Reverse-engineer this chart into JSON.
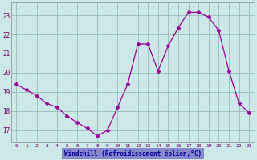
{
  "x": [
    0,
    1,
    2,
    3,
    4,
    5,
    6,
    7,
    8,
    9,
    10,
    11,
    12,
    13,
    14,
    15,
    16,
    17,
    18,
    19,
    20,
    21,
    22,
    23
  ],
  "y": [
    19.4,
    19.1,
    18.8,
    18.4,
    18.2,
    17.75,
    17.4,
    17.1,
    16.7,
    17.0,
    18.2,
    19.4,
    21.5,
    21.5,
    20.1,
    21.4,
    22.35,
    23.15,
    23.15,
    22.9,
    22.2,
    20.1,
    18.4,
    17.9
  ],
  "line_color": "#990099",
  "marker": "D",
  "marker_size": 2.5,
  "bg_color": "#cce8e8",
  "grid_color": "#99bbbb",
  "xlabel": "Windchill (Refroidissement éolien,°C)",
  "xlabel_color": "#000099",
  "xlabel_bg": "#8888cc",
  "yticks": [
    17,
    18,
    19,
    20,
    21,
    22,
    23
  ],
  "xlim": [
    -0.5,
    23.5
  ],
  "ylim": [
    16.35,
    23.65
  ],
  "tick_label_color": "#660066",
  "spine_color": "#888888"
}
